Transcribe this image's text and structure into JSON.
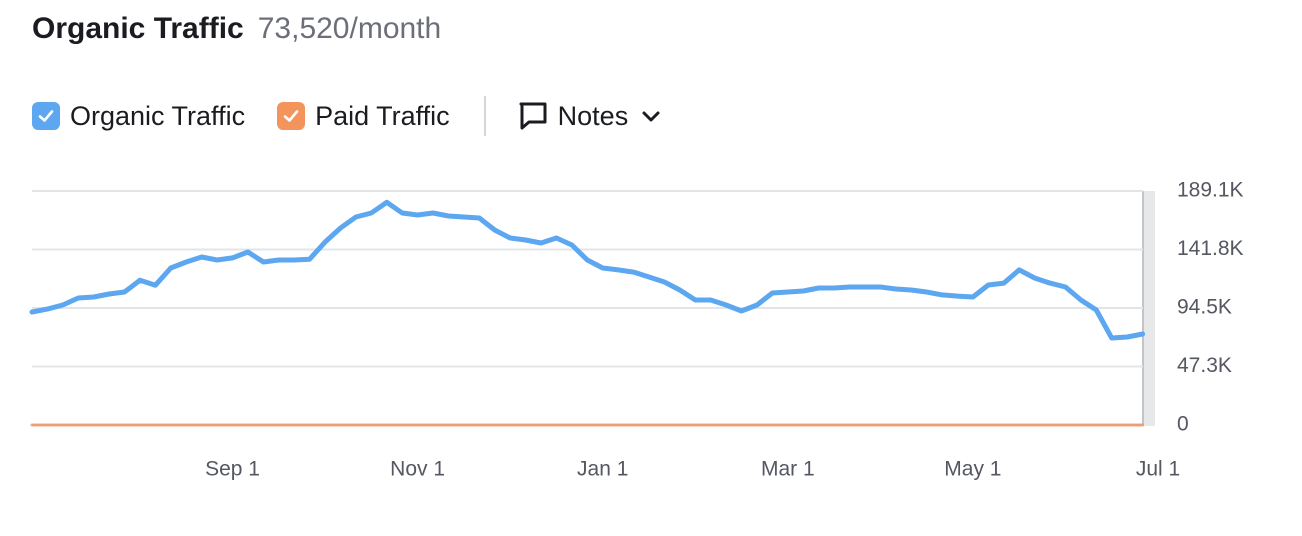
{
  "chart_data": {
    "type": "line",
    "title": "Organic Traffic",
    "subtitle": "73,520/month",
    "categories": [
      null,
      null,
      null,
      null,
      null,
      null,
      null,
      null,
      null,
      null,
      null,
      null,
      null,
      "Sep 1",
      null,
      null,
      null,
      null,
      null,
      null,
      null,
      null,
      null,
      null,
      null,
      "Nov 1",
      null,
      null,
      null,
      null,
      null,
      null,
      null,
      null,
      null,
      null,
      null,
      "Jan 1",
      null,
      null,
      null,
      null,
      null,
      null,
      null,
      null,
      null,
      null,
      null,
      "Mar 1",
      null,
      null,
      null,
      null,
      null,
      null,
      null,
      null,
      null,
      null,
      null,
      "May 1",
      null,
      null,
      null,
      null,
      null,
      null,
      null,
      null,
      null,
      null,
      null,
      "Jul 1"
    ],
    "series": [
      {
        "name": "Organic Traffic",
        "color": "#5ca7ef",
        "values": [
          91300,
          93700,
          97000,
          102600,
          103400,
          105900,
          107500,
          117000,
          113000,
          126900,
          131700,
          135800,
          133300,
          135000,
          139800,
          131700,
          133300,
          133300,
          134000,
          147900,
          159200,
          168100,
          171300,
          180000,
          171300,
          169700,
          171300,
          168900,
          168100,
          167300,
          157600,
          151100,
          149500,
          147100,
          151100,
          145500,
          133300,
          126900,
          125300,
          123600,
          119600,
          115600,
          109100,
          101000,
          101000,
          97000,
          92100,
          97000,
          106700,
          107500,
          108300,
          110700,
          110700,
          111500,
          111500,
          111500,
          109900,
          109100,
          107500,
          105100,
          104200,
          103400,
          113100,
          114700,
          125300,
          118800,
          114700,
          111500,
          101000,
          92900,
          70300,
          71100,
          73500,
          null
        ]
      },
      {
        "name": "Paid Traffic",
        "color": "#f2945c",
        "values": [
          0,
          0,
          0,
          0,
          0,
          0,
          0,
          0,
          0,
          0,
          0,
          0,
          0,
          0,
          0,
          0,
          0,
          0,
          0,
          0,
          0,
          0,
          0,
          0,
          0,
          0,
          0,
          0,
          0,
          0,
          0,
          0,
          0,
          0,
          0,
          0,
          0,
          0,
          0,
          0,
          0,
          0,
          0,
          0,
          0,
          0,
          0,
          0,
          0,
          0,
          0,
          0,
          0,
          0,
          0,
          0,
          0,
          0,
          0,
          0,
          0,
          0,
          0,
          0,
          0,
          0,
          0,
          0,
          0,
          0,
          0,
          0,
          0,
          null
        ]
      }
    ],
    "ylim": [
      0,
      189100
    ],
    "yticks": [
      0,
      {
        "value": 47300,
        "label": "47.3K"
      },
      {
        "value": 94500,
        "label": "94.5K"
      },
      {
        "value": 141800,
        "label": "141.8K"
      },
      {
        "value": 189100,
        "label": "189.1K"
      }
    ],
    "grid": true
  },
  "toolbar": {
    "notes": "Notes"
  }
}
